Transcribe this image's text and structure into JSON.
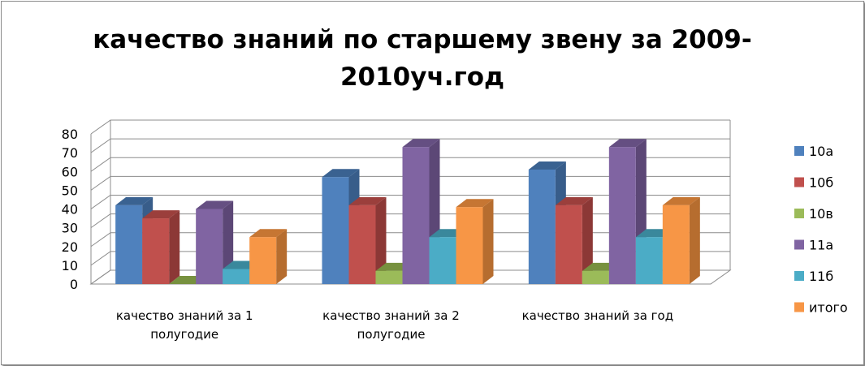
{
  "chart_data": {
    "type": "bar",
    "title_lines": [
      "качество знаний  по старшему звену за 2009-",
      "2010уч.год"
    ],
    "categories": [
      [
        "качество знаний за 1",
        "полугодие"
      ],
      [
        "качество знаний за 2",
        "полугодие"
      ],
      [
        "качество знаний за год"
      ]
    ],
    "series": [
      {
        "name": "10а",
        "color": "#4f81bd",
        "side": "#385d8a",
        "top": "#3a6291",
        "values": [
          42,
          57,
          61
        ]
      },
      {
        "name": "10б",
        "color": "#c0504d",
        "side": "#8c3836",
        "top": "#9b3f3c",
        "values": [
          35,
          42,
          42
        ]
      },
      {
        "name": "10в",
        "color": "#9bbb59",
        "side": "#71893f",
        "top": "#77913f",
        "values": [
          0,
          7,
          7
        ]
      },
      {
        "name": "11а",
        "color": "#8064a2",
        "side": "#5c4776",
        "top": "#654f82",
        "values": [
          40,
          73,
          73
        ]
      },
      {
        "name": "11б",
        "color": "#4bacc6",
        "side": "#357c90",
        "top": "#3a889c",
        "values": [
          8,
          25,
          25
        ]
      },
      {
        "name": "итого",
        "color": "#f79646",
        "side": "#b66d2f",
        "top": "#c67633",
        "values": [
          25,
          41,
          42
        ]
      }
    ],
    "yticks": [
      0,
      10,
      20,
      30,
      40,
      50,
      60,
      70,
      80
    ],
    "ylim": [
      0,
      80
    ],
    "grid": true,
    "legend_position": "right"
  }
}
